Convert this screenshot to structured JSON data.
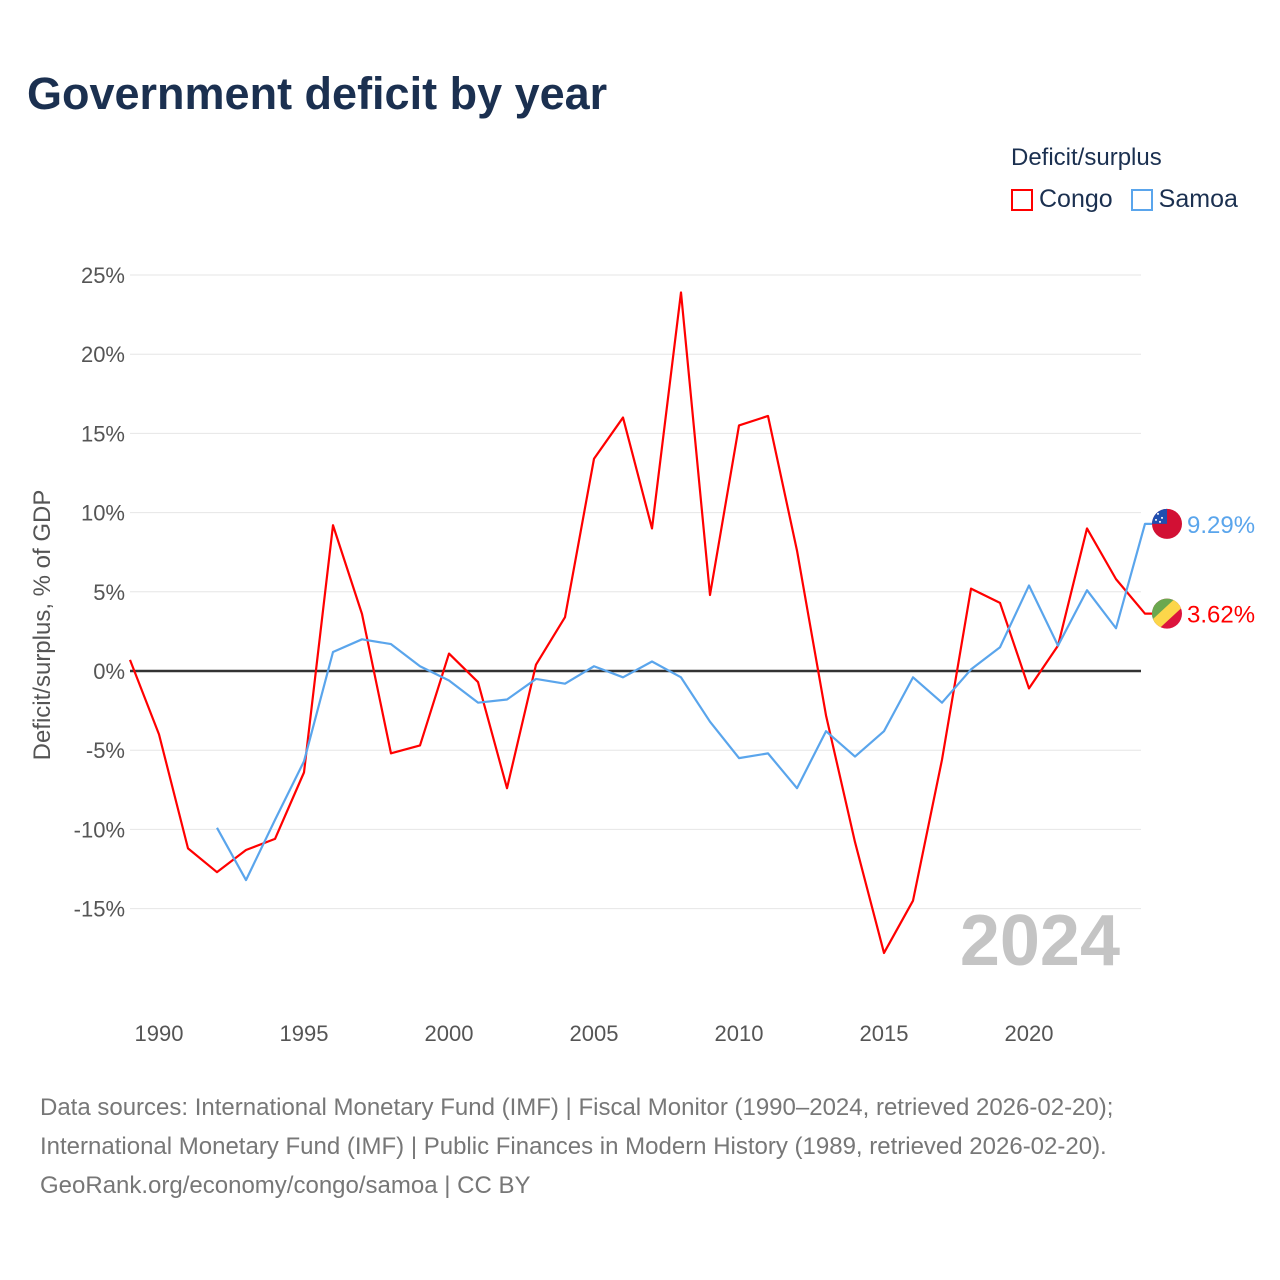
{
  "title": "Government deficit by year",
  "legend": {
    "title": "Deficit/surplus",
    "items": [
      {
        "name": "Congo",
        "color": "#ff0000"
      },
      {
        "name": "Samoa",
        "color": "#5aa5ec"
      }
    ]
  },
  "watermark_year": "2024",
  "end_labels": {
    "samoa": "9.29%",
    "congo": "3.62%"
  },
  "source_lines": [
    "Data sources: International Monetary Fund (IMF) | Fiscal Monitor (1990–2024, retrieved 2026-02-20);",
    "International Monetary Fund (IMF) | Public Finances in Modern History (1989, retrieved 2026-02-20).",
    "GeoRank.org/economy/congo/samoa | CC BY"
  ],
  "chart_data": {
    "type": "line",
    "title": "Government deficit by year",
    "xlabel": "",
    "ylabel": "Deficit/surplus, % of GDP",
    "xlim": [
      1989,
      2024
    ],
    "ylim": [
      -20,
      25
    ],
    "x_ticks": [
      1990,
      1995,
      2000,
      2005,
      2010,
      2015,
      2020
    ],
    "y_ticks": [
      25,
      20,
      15,
      10,
      5,
      0,
      -5,
      -10,
      -15
    ],
    "y_tick_labels": [
      "25%",
      "20%",
      "15%",
      "10%",
      "5%",
      "0%",
      "-5%",
      "-10%",
      "-15%"
    ],
    "grid": true,
    "legend_position": "top-right",
    "series": [
      {
        "name": "Congo",
        "color": "#ff0000",
        "start_year": 1989,
        "values": [
          0.7,
          -4.0,
          -11.2,
          -12.7,
          -11.3,
          -10.6,
          -6.4,
          9.2,
          3.6,
          -5.2,
          -4.7,
          1.1,
          -0.7,
          -7.4,
          0.4,
          3.4,
          13.4,
          16.0,
          9.0,
          23.9,
          4.8,
          15.5,
          16.1,
          7.6,
          -2.8,
          -10.8,
          -17.8,
          -14.5,
          -5.6,
          5.2,
          4.3,
          -1.1,
          1.6,
          9.0,
          5.8,
          3.62
        ]
      },
      {
        "name": "Samoa",
        "color": "#5aa5ec",
        "start_year": 1992,
        "values": [
          -9.9,
          -13.2,
          -9.4,
          -5.7,
          1.2,
          2.0,
          1.7,
          0.3,
          -0.6,
          -2.0,
          -1.8,
          -0.5,
          -0.8,
          0.3,
          -0.4,
          0.6,
          -0.4,
          -3.2,
          -5.5,
          -5.2,
          -7.4,
          -3.8,
          -5.4,
          -3.8,
          -0.4,
          -2.0,
          0.1,
          1.5,
          5.4,
          1.6,
          5.1,
          2.7,
          9.29
        ]
      }
    ]
  }
}
